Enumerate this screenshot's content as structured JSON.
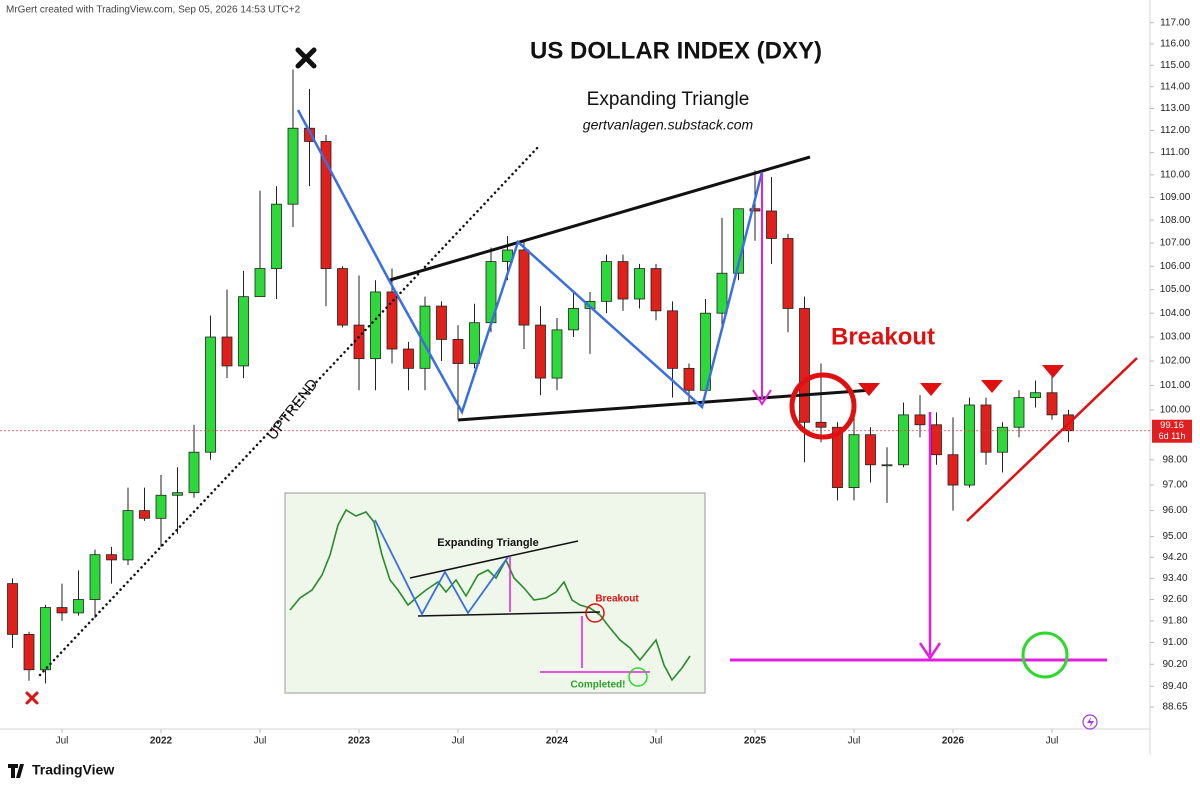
{
  "chart_data": {
    "type": "candlestick",
    "header": "MrGert created with TradingView.com, Sep 05, 2026 14:53 UTC+2",
    "title": "US DOLLAR INDEX (DXY)",
    "subtitle": "Expanding Triangle",
    "source": "gertvanlagen.substack.com",
    "annotations": {
      "breakout": "Breakout",
      "uptrend": "UPTREND"
    },
    "inset": {
      "title": "Expanding Triangle",
      "breakout": "Breakout",
      "completed": "Completed!"
    },
    "brand": "TradingView",
    "log_scale": true,
    "grid": false,
    "up_color": "#2fd83a",
    "down_color": "#e0201b",
    "open": [
      93.2,
      91.3,
      90.0,
      92.3,
      92.1,
      92.6,
      94.3,
      94.1,
      96.0,
      95.7,
      96.6,
      96.7,
      98.3,
      103.0,
      101.8,
      104.7,
      105.9,
      108.7,
      112.1,
      111.5,
      105.9,
      103.5,
      102.1,
      104.9,
      102.5,
      101.7,
      104.3,
      102.9,
      101.9,
      103.6,
      106.2,
      106.7,
      103.5,
      101.3,
      103.3,
      104.2,
      104.5,
      106.2,
      104.6,
      105.9,
      104.1,
      101.7,
      100.8,
      104.0,
      105.7,
      108.5,
      108.4,
      107.2,
      104.2,
      99.5,
      99.3,
      96.9,
      99.0,
      97.8,
      97.8,
      99.8,
      99.4,
      98.2,
      97.0,
      100.2,
      98.3,
      99.3,
      100.5,
      100.7,
      99.8
    ],
    "high": [
      93.4,
      91.4,
      92.4,
      93.2,
      93.7,
      94.5,
      94.6,
      96.9,
      96.9,
      97.4,
      97.7,
      99.4,
      103.9,
      105.0,
      105.8,
      109.3,
      109.5,
      114.8,
      113.9,
      111.8,
      106.0,
      105.6,
      105.4,
      105.9,
      102.8,
      104.7,
      104.5,
      103.5,
      104.4,
      106.8,
      107.3,
      107.1,
      104.3,
      103.8,
      104.9,
      104.9,
      106.5,
      106.5,
      106.1,
      106.1,
      104.5,
      101.9,
      104.6,
      108.1,
      108.5,
      110.2,
      109.9,
      107.4,
      104.7,
      101.9,
      99.5,
      100.1,
      99.3,
      98.5,
      100.3,
      100.6,
      99.9,
      99.7,
      100.5,
      100.5,
      99.5,
      100.8,
      101.2,
      101.4,
      100.0
    ],
    "low": [
      90.8,
      89.6,
      89.5,
      91.8,
      92.0,
      91.9,
      93.2,
      93.9,
      95.6,
      94.6,
      95.1,
      96.5,
      98.0,
      101.3,
      101.3,
      104.7,
      104.6,
      107.7,
      109.5,
      104.3,
      103.4,
      100.8,
      100.8,
      101.9,
      100.8,
      100.8,
      102.0,
      99.6,
      101.7,
      103.2,
      105.4,
      102.5,
      100.6,
      100.8,
      103.0,
      102.3,
      104.0,
      104.1,
      104.2,
      103.7,
      100.5,
      100.2,
      100.8,
      103.4,
      105.4,
      107.1,
      106.1,
      103.2,
      97.9,
      98.7,
      96.4,
      96.4,
      97.1,
      96.3,
      97.7,
      98.9,
      97.8,
      96.0,
      96.9,
      97.8,
      97.5,
      98.9,
      100.1,
      99.6,
      98.7
    ],
    "close": [
      91.3,
      90.0,
      92.3,
      92.1,
      92.6,
      94.3,
      94.1,
      96.0,
      95.7,
      96.6,
      96.7,
      98.3,
      103.0,
      101.8,
      104.7,
      105.9,
      108.7,
      112.1,
      111.5,
      105.9,
      103.5,
      102.1,
      104.9,
      102.5,
      101.7,
      104.3,
      102.9,
      101.9,
      103.6,
      106.2,
      106.7,
      103.5,
      101.3,
      103.3,
      104.2,
      104.5,
      106.2,
      104.6,
      105.9,
      104.1,
      101.7,
      100.8,
      104.0,
      105.7,
      108.5,
      108.4,
      107.2,
      104.2,
      99.5,
      99.3,
      96.9,
      99.0,
      97.8,
      97.8,
      99.8,
      99.4,
      98.2,
      97.0,
      100.2,
      98.3,
      99.3,
      100.5,
      100.7,
      99.8,
      99.16
    ],
    "last_price": {
      "value": 99.16,
      "label": "99.16"
    },
    "countdown": "6d 11h",
    "ylim": [
      87.9,
      117.7
    ],
    "yticks": [
      {
        "value": 117,
        "label": "117.00"
      },
      {
        "value": 116,
        "label": "116.00"
      },
      {
        "value": 115,
        "label": "115.00"
      },
      {
        "value": 114,
        "label": "114.00"
      },
      {
        "value": 113,
        "label": "113.00"
      },
      {
        "value": 112,
        "label": "112.00"
      },
      {
        "value": 111,
        "label": "111.00"
      },
      {
        "value": 110,
        "label": "110.00"
      },
      {
        "value": 109,
        "label": "109.00"
      },
      {
        "value": 108,
        "label": "108.00"
      },
      {
        "value": 107,
        "label": "107.00"
      },
      {
        "value": 106,
        "label": "106.00"
      },
      {
        "value": 105,
        "label": "105.00"
      },
      {
        "value": 104,
        "label": "104.00"
      },
      {
        "value": 103,
        "label": "103.00"
      },
      {
        "value": 102,
        "label": "102.00"
      },
      {
        "value": 101,
        "label": "101.00"
      },
      {
        "value": 100,
        "label": "100.00"
      },
      {
        "value": 98,
        "label": "98.00"
      },
      {
        "value": 97,
        "label": "97.00"
      },
      {
        "value": 96,
        "label": "96.00"
      },
      {
        "value": 95,
        "label": "95.00"
      },
      {
        "value": 94.2,
        "label": "94.20"
      },
      {
        "value": 93.4,
        "label": "93.40"
      },
      {
        "value": 92.6,
        "label": "92.60"
      },
      {
        "value": 91.8,
        "label": "91.80"
      },
      {
        "value": 91,
        "label": "91.00"
      },
      {
        "value": 90.2,
        "label": "90.20"
      },
      {
        "value": 89.4,
        "label": "89.40"
      },
      {
        "value": 88.65,
        "label": "88.65"
      }
    ],
    "xticks": [
      {
        "value": 3,
        "label": "Jul"
      },
      {
        "value": 9,
        "label": "2022"
      },
      {
        "value": 15,
        "label": "Jul"
      },
      {
        "value": 21,
        "label": "2023"
      },
      {
        "value": 27,
        "label": "Jul"
      },
      {
        "value": 33,
        "label": "2024"
      },
      {
        "value": 39,
        "label": "Jul"
      },
      {
        "value": 45,
        "label": "2025"
      },
      {
        "value": 51,
        "label": "Jul"
      },
      {
        "value": 57,
        "label": "2026"
      },
      {
        "value": 63,
        "label": "Jul"
      }
    ]
  }
}
